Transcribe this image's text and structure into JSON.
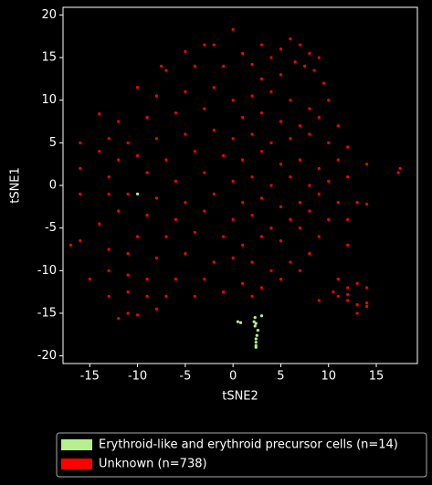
{
  "chart_data": {
    "type": "scatter",
    "xlabel": "tSNE2",
    "ylabel": "tSNE1",
    "xlim": [
      -17.8,
      19.3
    ],
    "ylim": [
      -20.9,
      20.9
    ],
    "xticks": [
      -15,
      -10,
      -5,
      0,
      5,
      10,
      15
    ],
    "yticks": [
      -20,
      -15,
      -10,
      -5,
      0,
      5,
      10,
      15,
      20
    ],
    "legend": "lower center",
    "series": [
      {
        "name": "Erythroid-like and erythroid precursor cells (n=14)",
        "color": "#b5ef8e",
        "x": [
          -10,
          0.5,
          0.8,
          2.2,
          2.3,
          2.4,
          2.6,
          3,
          2.4,
          2.4,
          2.4,
          2.4,
          2.5,
          2.3
        ],
        "y": [
          -1,
          -16,
          -16.1,
          -16,
          -15.5,
          -16.2,
          -17,
          -15.3,
          -18,
          -18.4,
          -18.8,
          -19,
          -17.6,
          -16.5
        ]
      },
      {
        "name": "Unknown (n=738)",
        "color": "#ff0000",
        "x": [
          0,
          3,
          -2,
          -3,
          6,
          7,
          5,
          8,
          9,
          -5,
          1,
          4,
          6.5,
          7.5,
          8.5,
          5,
          3,
          -7.5,
          -7,
          -4,
          -1,
          2,
          9.5,
          10,
          -10,
          -8,
          -5,
          -2,
          0,
          2,
          4,
          6,
          8,
          -12,
          -14,
          -9,
          -6,
          -3,
          1,
          3,
          5,
          7,
          9,
          11,
          -16,
          -13,
          -11,
          -8,
          -5,
          -2,
          0,
          2,
          4,
          6,
          8,
          10,
          12,
          -14,
          -12,
          -10,
          -7,
          -4,
          -1,
          1,
          3,
          5,
          7,
          9,
          11,
          14,
          -16,
          -13,
          -9,
          -6,
          -3,
          0,
          2,
          4,
          6,
          8,
          10,
          12,
          17.3,
          17.5,
          -16,
          -13,
          -11,
          -8,
          -5,
          -2,
          1,
          3,
          5,
          7,
          9,
          11,
          13,
          14,
          -12,
          -9,
          -6,
          -3,
          0,
          2,
          4,
          6,
          8,
          10,
          12,
          -14,
          -10,
          -7,
          -4,
          -1,
          1,
          3,
          5,
          7,
          9,
          12,
          -17,
          -16,
          -13,
          -11,
          -8,
          -5,
          -2,
          0,
          2,
          4,
          6,
          8,
          -15,
          -13,
          -11,
          -9,
          -6,
          -3,
          1,
          3,
          5,
          7,
          -13,
          -11,
          -9,
          -7,
          -4,
          -1,
          2,
          9,
          11,
          12,
          13,
          14,
          11,
          12,
          13,
          14,
          10.5,
          13,
          -12,
          -11,
          -10,
          -8,
          12,
          14
        ],
        "y": [
          18.3,
          16.5,
          16.5,
          16.5,
          17.2,
          16.5,
          16,
          15.5,
          15,
          15.7,
          15.5,
          15,
          14.5,
          14,
          13.5,
          13,
          12.5,
          14,
          13.5,
          14,
          14,
          14.2,
          12,
          10,
          11.5,
          10.5,
          11,
          11.5,
          10,
          10.5,
          11,
          10,
          9,
          7.5,
          8.4,
          8,
          8.5,
          9,
          8,
          8.5,
          7.5,
          7,
          8,
          7,
          5,
          5.5,
          5,
          5.5,
          6,
          6.5,
          5.5,
          6,
          5,
          5.5,
          6,
          5,
          4.5,
          4,
          3,
          3.5,
          3,
          4,
          3.5,
          3,
          4,
          2.5,
          3,
          2,
          3,
          2.5,
          2,
          1,
          1.5,
          0.5,
          1.5,
          0.5,
          1,
          0,
          1,
          0,
          0.5,
          1,
          1.5,
          2,
          -1,
          -1,
          -1,
          -1.5,
          -2,
          -1,
          -2,
          -1.5,
          -2.5,
          -2,
          -1,
          -2,
          -2,
          -2.2,
          -3,
          -3.5,
          -4,
          -3,
          -4,
          -3.5,
          -5,
          -4,
          -3,
          -4,
          -4,
          -4.5,
          -6,
          -6,
          -5.5,
          -6,
          -7,
          -6,
          -6.5,
          -5,
          -6,
          -7,
          -7,
          -6.5,
          -7.5,
          -8,
          -8.5,
          -8,
          -9,
          -8.5,
          -9,
          -10,
          -9,
          -8,
          -11,
          -10,
          -10.5,
          -11,
          -11,
          -11,
          -11.5,
          -12,
          -11,
          -10,
          -13,
          -12.5,
          -13,
          -13,
          -13,
          -12.5,
          -13,
          -13.5,
          -11,
          -12,
          -11.5,
          -12,
          -13,
          -13.5,
          -14,
          -14.2,
          -12.5,
          -15,
          -15.6,
          -15,
          -15.2,
          -14.5,
          -12.8,
          -13.8
        ]
      }
    ]
  }
}
